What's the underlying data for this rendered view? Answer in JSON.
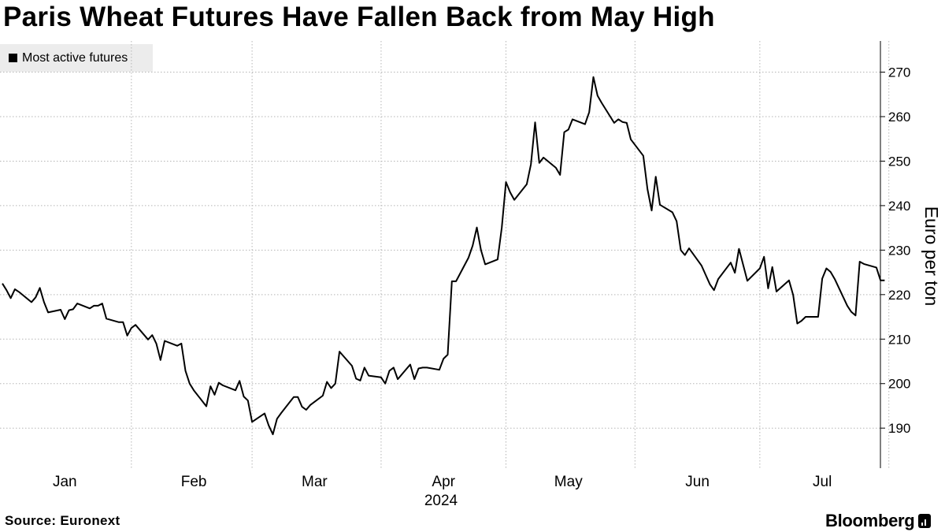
{
  "title": "Paris Wheat Futures Have Fallen Back from May High",
  "source": "Source: Euronext",
  "brand": "Bloomberg",
  "chart_data": {
    "type": "line",
    "ylabel": "Euro per ton",
    "xlabel": "2024",
    "ylim": [
      181,
      277
    ],
    "yticks": [
      190,
      200,
      210,
      220,
      230,
      240,
      250,
      260,
      270
    ],
    "y_axis_side": "right",
    "grid": "dotted",
    "legend": "top-left",
    "line_color": "#000000",
    "x_tick_labels": [
      "Jan",
      "Feb",
      "Mar",
      "Apr",
      "May",
      "Jun",
      "Jul"
    ],
    "x_range": [
      "2024-01-01",
      "2024-07-26"
    ],
    "series": [
      {
        "name": "Most active futures",
        "points": [
          [
            "2024-01-01",
            222.5
          ],
          [
            "2024-01-02",
            221.0
          ],
          [
            "2024-01-03",
            219.2
          ],
          [
            "2024-01-04",
            221.2
          ],
          [
            "2024-01-05",
            220.6
          ],
          [
            "2024-01-08",
            218.3
          ],
          [
            "2024-01-09",
            219.4
          ],
          [
            "2024-01-10",
            221.5
          ],
          [
            "2024-01-11",
            218.3
          ],
          [
            "2024-01-12",
            216.0
          ],
          [
            "2024-01-15",
            216.6
          ],
          [
            "2024-01-16",
            214.5
          ],
          [
            "2024-01-17",
            216.5
          ],
          [
            "2024-01-18",
            216.7
          ],
          [
            "2024-01-19",
            218.0
          ],
          [
            "2024-01-22",
            216.9
          ],
          [
            "2024-01-23",
            217.5
          ],
          [
            "2024-01-24",
            217.5
          ],
          [
            "2024-01-25",
            218.0
          ],
          [
            "2024-01-26",
            214.6
          ],
          [
            "2024-01-29",
            213.8
          ],
          [
            "2024-01-30",
            213.8
          ],
          [
            "2024-01-31",
            210.8
          ],
          [
            "2024-02-01",
            212.5
          ],
          [
            "2024-02-02",
            213.2
          ],
          [
            "2024-02-05",
            209.9
          ],
          [
            "2024-02-06",
            210.9
          ],
          [
            "2024-02-07",
            209.0
          ],
          [
            "2024-02-08",
            205.3
          ],
          [
            "2024-02-09",
            209.6
          ],
          [
            "2024-02-12",
            208.5
          ],
          [
            "2024-02-13",
            209.0
          ],
          [
            "2024-02-14",
            202.9
          ],
          [
            "2024-02-15",
            200.0
          ],
          [
            "2024-02-16",
            198.5
          ],
          [
            "2024-02-19",
            194.9
          ],
          [
            "2024-02-20",
            199.4
          ],
          [
            "2024-02-21",
            197.5
          ],
          [
            "2024-02-22",
            200.2
          ],
          [
            "2024-02-23",
            199.6
          ],
          [
            "2024-02-26",
            198.5
          ],
          [
            "2024-02-27",
            200.6
          ],
          [
            "2024-02-28",
            197.1
          ],
          [
            "2024-02-29",
            196.2
          ],
          [
            "2024-03-01",
            191.4
          ],
          [
            "2024-03-04",
            193.3
          ],
          [
            "2024-03-05",
            190.6
          ],
          [
            "2024-03-06",
            188.6
          ],
          [
            "2024-03-07",
            192.1
          ],
          [
            "2024-03-08",
            193.4
          ],
          [
            "2024-03-11",
            197.0
          ],
          [
            "2024-03-12",
            197.0
          ],
          [
            "2024-03-13",
            194.8
          ],
          [
            "2024-03-14",
            194.1
          ],
          [
            "2024-03-15",
            195.2
          ],
          [
            "2024-03-18",
            197.3
          ],
          [
            "2024-03-19",
            200.4
          ],
          [
            "2024-03-20",
            199.0
          ],
          [
            "2024-03-21",
            200.0
          ],
          [
            "2024-03-22",
            207.2
          ],
          [
            "2024-03-25",
            204.0
          ],
          [
            "2024-03-26",
            201.1
          ],
          [
            "2024-03-27",
            200.7
          ],
          [
            "2024-03-28",
            203.6
          ],
          [
            "2024-03-29",
            201.8
          ],
          [
            "2024-04-01",
            201.4
          ],
          [
            "2024-04-02",
            200.0
          ],
          [
            "2024-04-03",
            202.9
          ],
          [
            "2024-04-04",
            203.6
          ],
          [
            "2024-04-05",
            201.0
          ],
          [
            "2024-04-08",
            204.3
          ],
          [
            "2024-04-09",
            201.0
          ],
          [
            "2024-04-10",
            203.4
          ],
          [
            "2024-04-11",
            203.6
          ],
          [
            "2024-04-12",
            203.6
          ],
          [
            "2024-04-15",
            203.1
          ],
          [
            "2024-04-16",
            205.6
          ],
          [
            "2024-04-17",
            206.5
          ],
          [
            "2024-04-18",
            223.0
          ],
          [
            "2024-04-19",
            223.0
          ],
          [
            "2024-04-22",
            228.3
          ],
          [
            "2024-04-23",
            231.0
          ],
          [
            "2024-04-24",
            235.1
          ],
          [
            "2024-04-25",
            230.0
          ],
          [
            "2024-04-26",
            226.8
          ],
          [
            "2024-04-29",
            227.9
          ],
          [
            "2024-04-30",
            235.1
          ],
          [
            "2024-05-01",
            245.3
          ],
          [
            "2024-05-02",
            243.0
          ],
          [
            "2024-05-03",
            241.3
          ],
          [
            "2024-05-06",
            244.8
          ],
          [
            "2024-05-07",
            249.3
          ],
          [
            "2024-05-08",
            258.7
          ],
          [
            "2024-05-09",
            249.6
          ],
          [
            "2024-05-10",
            250.8
          ],
          [
            "2024-05-13",
            248.5
          ],
          [
            "2024-05-14",
            246.9
          ],
          [
            "2024-05-15",
            256.5
          ],
          [
            "2024-05-16",
            257.1
          ],
          [
            "2024-05-17",
            259.4
          ],
          [
            "2024-05-20",
            258.3
          ],
          [
            "2024-05-21",
            261.0
          ],
          [
            "2024-05-22",
            268.9
          ],
          [
            "2024-05-23",
            264.7
          ],
          [
            "2024-05-24",
            263.1
          ],
          [
            "2024-05-27",
            258.6
          ],
          [
            "2024-05-28",
            259.4
          ],
          [
            "2024-05-29",
            258.8
          ],
          [
            "2024-05-30",
            258.6
          ],
          [
            "2024-05-31",
            254.9
          ],
          [
            "2024-06-03",
            251.2
          ],
          [
            "2024-06-04",
            243.7
          ],
          [
            "2024-06-05",
            238.9
          ],
          [
            "2024-06-06",
            246.5
          ],
          [
            "2024-06-07",
            240.2
          ],
          [
            "2024-06-10",
            238.5
          ],
          [
            "2024-06-11",
            236.5
          ],
          [
            "2024-06-12",
            230.0
          ],
          [
            "2024-06-13",
            228.9
          ],
          [
            "2024-06-14",
            230.4
          ],
          [
            "2024-06-17",
            226.5
          ],
          [
            "2024-06-18",
            224.4
          ],
          [
            "2024-06-19",
            222.3
          ],
          [
            "2024-06-20",
            221.0
          ],
          [
            "2024-06-21",
            223.5
          ],
          [
            "2024-06-24",
            227.2
          ],
          [
            "2024-06-25",
            224.9
          ],
          [
            "2024-06-26",
            230.3
          ],
          [
            "2024-06-27",
            226.7
          ],
          [
            "2024-06-28",
            223.1
          ],
          [
            "2024-07-01",
            225.9
          ],
          [
            "2024-07-02",
            228.5
          ],
          [
            "2024-07-03",
            221.4
          ],
          [
            "2024-07-04",
            226.2
          ],
          [
            "2024-07-05",
            220.7
          ],
          [
            "2024-07-08",
            223.2
          ],
          [
            "2024-07-09",
            219.9
          ],
          [
            "2024-07-10",
            213.5
          ],
          [
            "2024-07-11",
            214.1
          ],
          [
            "2024-07-12",
            215.0
          ],
          [
            "2024-07-15",
            215.0
          ],
          [
            "2024-07-16",
            223.6
          ],
          [
            "2024-07-17",
            225.9
          ],
          [
            "2024-07-18",
            225.1
          ],
          [
            "2024-07-19",
            223.5
          ],
          [
            "2024-07-22",
            217.5
          ],
          [
            "2024-07-23",
            216.1
          ],
          [
            "2024-07-24",
            215.3
          ],
          [
            "2024-07-25",
            227.4
          ],
          [
            "2024-07-26",
            226.9
          ],
          [
            "2024-07-29",
            226.1
          ],
          [
            "2024-07-30",
            223.2
          ],
          [
            "2024-07-31",
            223.2
          ]
        ]
      }
    ]
  }
}
